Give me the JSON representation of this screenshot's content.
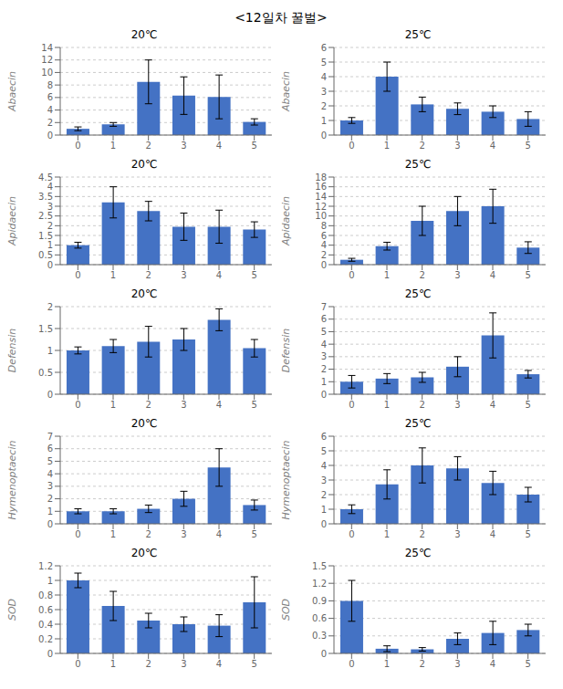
{
  "title": "<12일차 꿀벌>",
  "chart_data": [
    {
      "type": "bar",
      "title": "20℃",
      "ylabel": "Abaecin",
      "categories": [
        "0",
        "1",
        "2",
        "3",
        "4",
        "5"
      ],
      "values": [
        1.0,
        1.7,
        8.5,
        6.3,
        6.1,
        2.1
      ],
      "errors": [
        0.3,
        0.3,
        3.5,
        3.0,
        3.5,
        0.5
      ],
      "color": "#4472C4",
      "ylim": [
        0,
        14
      ],
      "yticks": [
        0,
        2,
        4,
        6,
        8,
        10,
        12,
        14
      ]
    },
    {
      "type": "bar",
      "title": "25℃",
      "ylabel": "Abaecin",
      "categories": [
        "0",
        "1",
        "2",
        "3",
        "4",
        "5"
      ],
      "values": [
        1.0,
        4.0,
        2.1,
        1.8,
        1.6,
        1.1
      ],
      "errors": [
        0.2,
        1.0,
        0.5,
        0.4,
        0.4,
        0.5
      ],
      "color": "#4472C4",
      "ylim": [
        0,
        6
      ],
      "yticks": [
        0,
        1,
        2,
        3,
        4,
        5,
        6
      ]
    },
    {
      "type": "bar",
      "title": "20℃",
      "ylabel": "Apidaecin",
      "categories": [
        "0",
        "1",
        "2",
        "3",
        "4",
        "5"
      ],
      "values": [
        1.0,
        3.2,
        2.75,
        1.95,
        1.95,
        1.8
      ],
      "errors": [
        0.15,
        0.8,
        0.5,
        0.7,
        0.85,
        0.4
      ],
      "color": "#4472C4",
      "ylim": [
        0,
        4.5
      ],
      "yticks": [
        0.0,
        0.5,
        1.0,
        1.5,
        2.0,
        2.5,
        3.0,
        3.5,
        4.0,
        4.5
      ]
    },
    {
      "type": "bar",
      "title": "25℃",
      "ylabel": "Apidaecin",
      "categories": [
        "0",
        "1",
        "2",
        "3",
        "4",
        "5"
      ],
      "values": [
        1.0,
        3.8,
        9.0,
        11.0,
        12.0,
        3.5
      ],
      "errors": [
        0.3,
        0.8,
        3.0,
        3.0,
        3.5,
        1.2
      ],
      "color": "#4472C4",
      "ylim": [
        0,
        18
      ],
      "yticks": [
        0,
        2,
        4,
        6,
        8,
        10,
        12,
        14,
        16,
        18
      ]
    },
    {
      "type": "bar",
      "title": "20℃",
      "ylabel": "Defensin",
      "categories": [
        "0",
        "1",
        "2",
        "3",
        "4",
        "5"
      ],
      "values": [
        1.0,
        1.1,
        1.2,
        1.25,
        1.7,
        1.05
      ],
      "errors": [
        0.08,
        0.15,
        0.35,
        0.25,
        0.25,
        0.2
      ],
      "color": "#4472C4",
      "ylim": [
        0,
        2
      ],
      "yticks": [
        0,
        0.5,
        1.0,
        1.5,
        2.0
      ]
    },
    {
      "type": "bar",
      "title": "25℃",
      "ylabel": "Defensin",
      "categories": [
        "0",
        "1",
        "2",
        "3",
        "4",
        "5"
      ],
      "values": [
        1.0,
        1.25,
        1.35,
        2.2,
        4.7,
        1.6
      ],
      "errors": [
        0.5,
        0.4,
        0.4,
        0.8,
        1.8,
        0.3
      ],
      "color": "#4472C4",
      "ylim": [
        0,
        7
      ],
      "yticks": [
        0,
        1,
        2,
        3,
        4,
        5,
        6,
        7
      ]
    },
    {
      "type": "bar",
      "title": "20℃",
      "ylabel": "Hymenoptaecin",
      "categories": [
        "0",
        "1",
        "2",
        "3",
        "4",
        "5"
      ],
      "values": [
        1.0,
        1.0,
        1.2,
        2.0,
        4.5,
        1.5
      ],
      "errors": [
        0.2,
        0.2,
        0.3,
        0.6,
        1.5,
        0.4
      ],
      "color": "#4472C4",
      "ylim": [
        0,
        7
      ],
      "yticks": [
        0,
        1,
        2,
        3,
        4,
        5,
        6,
        7
      ]
    },
    {
      "type": "bar",
      "title": "25℃",
      "ylabel": "Hymenoptaecin",
      "categories": [
        "0",
        "1",
        "2",
        "3",
        "4",
        "5"
      ],
      "values": [
        1.0,
        2.7,
        4.0,
        3.8,
        2.8,
        2.0
      ],
      "errors": [
        0.3,
        1.0,
        1.2,
        0.8,
        0.8,
        0.5
      ],
      "color": "#4472C4",
      "ylim": [
        0,
        6
      ],
      "yticks": [
        0,
        1,
        2,
        3,
        4,
        5,
        6
      ]
    },
    {
      "type": "bar",
      "title": "20℃",
      "ylabel": "SOD",
      "categories": [
        "0",
        "1",
        "2",
        "3",
        "4",
        "5"
      ],
      "values": [
        1.0,
        0.65,
        0.45,
        0.4,
        0.38,
        0.7
      ],
      "errors": [
        0.1,
        0.2,
        0.1,
        0.1,
        0.15,
        0.35
      ],
      "color": "#4472C4",
      "ylim": [
        0,
        1.2
      ],
      "yticks": [
        0,
        0.2,
        0.4,
        0.6,
        0.8,
        1.0,
        1.2
      ]
    },
    {
      "type": "bar",
      "title": "25℃",
      "ylabel": "SOD",
      "categories": [
        "0",
        "1",
        "2",
        "3",
        "4",
        "5"
      ],
      "values": [
        0.9,
        0.08,
        0.07,
        0.25,
        0.35,
        0.4
      ],
      "errors": [
        0.35,
        0.05,
        0.03,
        0.1,
        0.2,
        0.1
      ],
      "color": "#4472C4",
      "ylim": [
        0,
        1.5
      ],
      "yticks": [
        0,
        0.3,
        0.6,
        0.9,
        1.2,
        1.5
      ]
    }
  ]
}
